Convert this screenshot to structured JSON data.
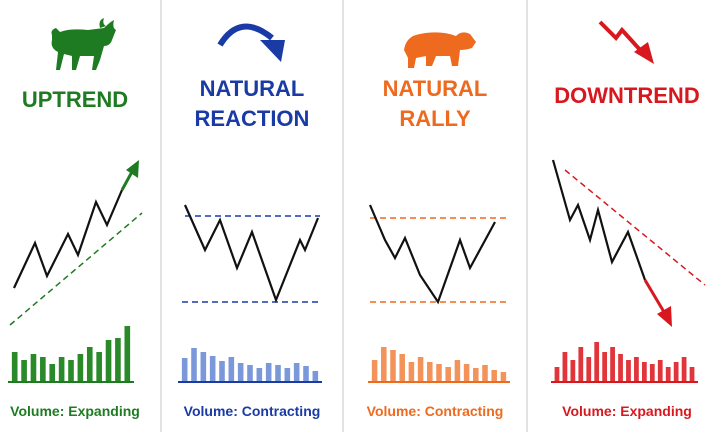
{
  "panels": [
    {
      "title_lines": [
        "UPTREND"
      ],
      "caption": "Volume: Expanding",
      "color": "#1e7b22",
      "bar_color": "#2a8a2a",
      "volume": [
        30,
        22,
        28,
        25,
        18,
        25,
        22,
        28,
        35,
        30,
        42,
        44,
        56
      ]
    },
    {
      "title_lines": [
        "NATURAL",
        "REACTION"
      ],
      "caption": "Volume: Contracting",
      "color": "#1a3aa5",
      "bar_color": "#7b99da",
      "volume": [
        24,
        34,
        30,
        26,
        21,
        25,
        19,
        17,
        14,
        19,
        17,
        14,
        19,
        16,
        11
      ]
    },
    {
      "title_lines": [
        "NATURAL",
        "RALLY"
      ],
      "caption": "Volume: Contracting",
      "color": "#ee6a1e",
      "bar_color": "#f3935a",
      "volume": [
        22,
        35,
        32,
        28,
        20,
        25,
        20,
        18,
        15,
        22,
        18,
        14,
        17,
        12,
        10
      ]
    },
    {
      "title_lines": [
        "DOWNTREND"
      ],
      "caption": "Volume: Expanding",
      "color": "#d8181f",
      "bar_color": "#e0353a",
      "volume": [
        15,
        30,
        22,
        35,
        25,
        40,
        30,
        35,
        28,
        22,
        25,
        20,
        18,
        22,
        15,
        20,
        25,
        15
      ]
    }
  ]
}
